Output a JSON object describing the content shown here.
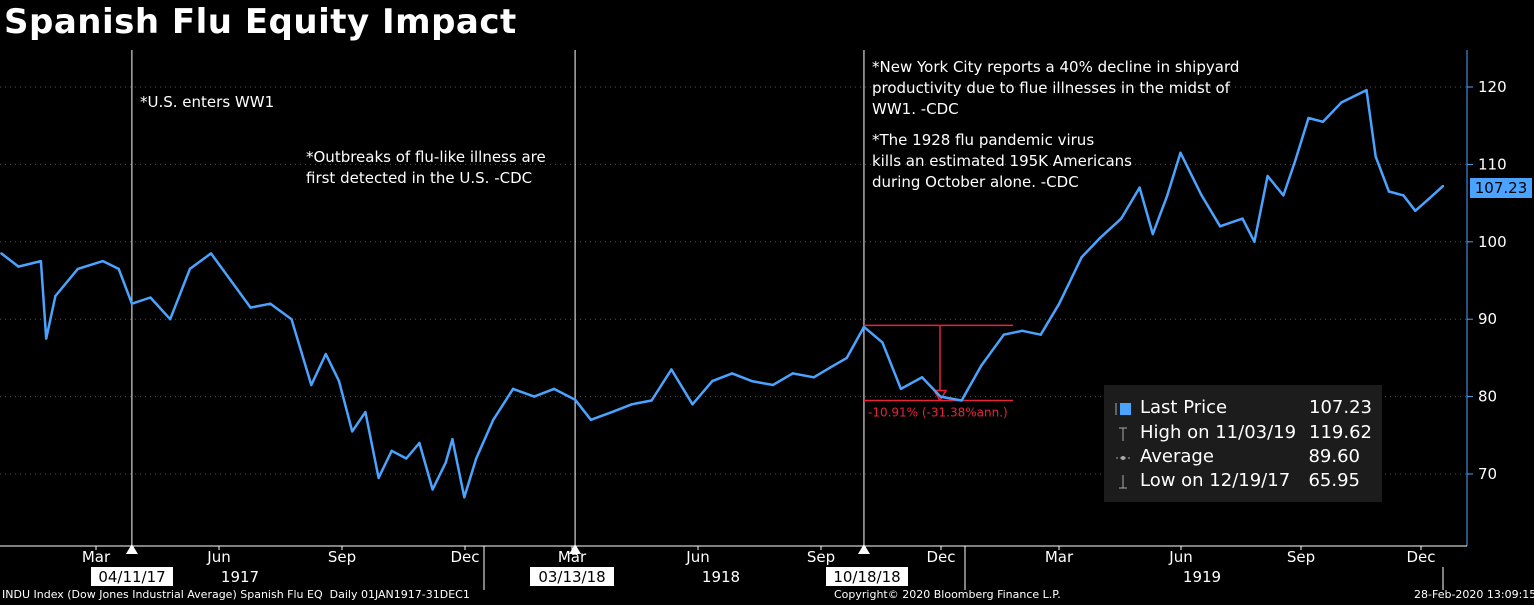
{
  "title": "Spanish Flu Equity Impact",
  "annotations": {
    "ww1": "*U.S. enters WW1",
    "outbreak": "*Outbreaks of flu-like illness are\nfirst detected in the U.S. -CDC",
    "nyc": "*New York City reports a 40% decline in shipyard\nproductivity due to flue illnesses in the midst of\nWW1. -CDC",
    "pandemic": "*The 1928 flu pandemic virus\nkills an estimated 195K Americans\nduring October alone. -CDC",
    "drawdown": "-10.91% (-31.38%ann.)"
  },
  "legend": {
    "last_label": "Last Price",
    "last_value": "107.23",
    "high_label": "High on 11/03/19",
    "high_value": "119.62",
    "avg_label": "Average",
    "avg_value": "89.60",
    "low_label": "Low on 12/19/17",
    "low_value": "65.95"
  },
  "last_tag": "107.23",
  "x_axis": {
    "months": [
      "Mar",
      "Jun",
      "Sep",
      "Dec",
      "Mar",
      "Jun",
      "Sep",
      "Dec",
      "Mar",
      "Jun",
      "Sep",
      "Dec"
    ],
    "years": [
      "1917",
      "1918",
      "1919"
    ],
    "event_dates": [
      "04/11/17",
      "03/13/18",
      "10/18/18"
    ]
  },
  "y_axis": {
    "ticks": [
      "70",
      "80",
      "90",
      "100",
      "110",
      "120"
    ]
  },
  "footer": {
    "left": "INDU Index (Dow Jones Industrial Average) Spanish Flu EQ  Daily 01JAN1917-31DEC1",
    "center": "Copyright© 2020 Bloomberg Finance L.P.",
    "right": "28-Feb-2020 13:09:15"
  },
  "colors": {
    "line": "#4aa3ff",
    "drawdown": "#e8233a",
    "background": "#000000"
  },
  "chart_data": {
    "type": "line",
    "series": [
      {
        "name": "INDU Index",
        "x": [
          "1917-01-02",
          "1917-01-15",
          "1917-02-01",
          "1917-02-05",
          "1917-02-12",
          "1917-03-01",
          "1917-03-20",
          "1917-04-01",
          "1917-04-11",
          "1917-04-25",
          "1917-05-10",
          "1917-05-25",
          "1917-06-10",
          "1917-06-25",
          "1917-07-10",
          "1917-07-25",
          "1917-08-10",
          "1917-08-25",
          "1917-09-05",
          "1917-09-15",
          "1917-09-25",
          "1917-10-05",
          "1917-10-15",
          "1917-10-25",
          "1917-11-05",
          "1917-11-15",
          "1917-11-25",
          "1917-12-05",
          "1917-12-10",
          "1917-12-19",
          "1917-12-28",
          "1918-01-10",
          "1918-01-25",
          "1918-02-10",
          "1918-02-25",
          "1918-03-13",
          "1918-03-25",
          "1918-04-10",
          "1918-04-25",
          "1918-05-10",
          "1918-05-25",
          "1918-06-10",
          "1918-06-25",
          "1918-07-10",
          "1918-07-25",
          "1918-08-10",
          "1918-08-25",
          "1918-09-10",
          "1918-09-25",
          "1918-10-05",
          "1918-10-18",
          "1918-11-01",
          "1918-11-15",
          "1918-12-01",
          "1918-12-15",
          "1918-12-31",
          "1919-01-15",
          "1919-02-01",
          "1919-02-15",
          "1919-03-01",
          "1919-03-15",
          "1919-04-01",
          "1919-04-15",
          "1919-05-01",
          "1919-05-15",
          "1919-05-25",
          "1919-06-05",
          "1919-06-15",
          "1919-07-01",
          "1919-07-15",
          "1919-08-01",
          "1919-08-10",
          "1919-08-20",
          "1919-09-01",
          "1919-09-10",
          "1919-09-20",
          "1919-10-01",
          "1919-10-15",
          "1919-11-03",
          "1919-11-10",
          "1919-11-20",
          "1919-12-01",
          "1919-12-10",
          "1919-12-20",
          "1919-12-31"
        ],
        "y": [
          98.5,
          96.8,
          97.5,
          87.5,
          93.0,
          96.5,
          97.5,
          96.5,
          92.0,
          92.8,
          90.0,
          96.5,
          98.5,
          95.0,
          91.5,
          92.0,
          90.0,
          81.5,
          85.5,
          82.0,
          75.5,
          78.0,
          69.5,
          73.0,
          72.0,
          74.0,
          68.0,
          71.5,
          74.5,
          67.0,
          72.0,
          77.0,
          81.0,
          80.0,
          81.0,
          79.6,
          77.0,
          78.0,
          79.0,
          79.5,
          83.5,
          79.0,
          82.0,
          83.0,
          82.0,
          81.5,
          83.0,
          82.5,
          84.0,
          85.0,
          89.0,
          87.0,
          81.0,
          82.5,
          80.0,
          79.5,
          84.0,
          88.0,
          88.5,
          88.0,
          92.0,
          98.0,
          100.5,
          103.0,
          107.0,
          101.0,
          106.0,
          111.5,
          106.0,
          102.0,
          103.0,
          100.0,
          108.5,
          106.0,
          110.5,
          116.0,
          115.5,
          118.0,
          119.6,
          111.0,
          106.5,
          106.0,
          104.0,
          105.5,
          107.2
        ]
      }
    ],
    "title": "Spanish Flu Equity Impact",
    "ylim": [
      60,
      124
    ],
    "xlim": [
      "1917-01-01",
      "1919-12-31"
    ],
    "yticks": [
      70,
      80,
      90,
      100,
      110,
      120
    ],
    "event_markers": [
      "1917-04-11",
      "1918-03-13",
      "1918-10-18"
    ],
    "drawdown": {
      "from": "1918-10-18",
      "to": "1918-12-31",
      "peak": 89.2,
      "trough": 79.5,
      "label": "-10.91% (-31.38%ann.)"
    },
    "grid": true,
    "legend_position": "bottom-right"
  }
}
